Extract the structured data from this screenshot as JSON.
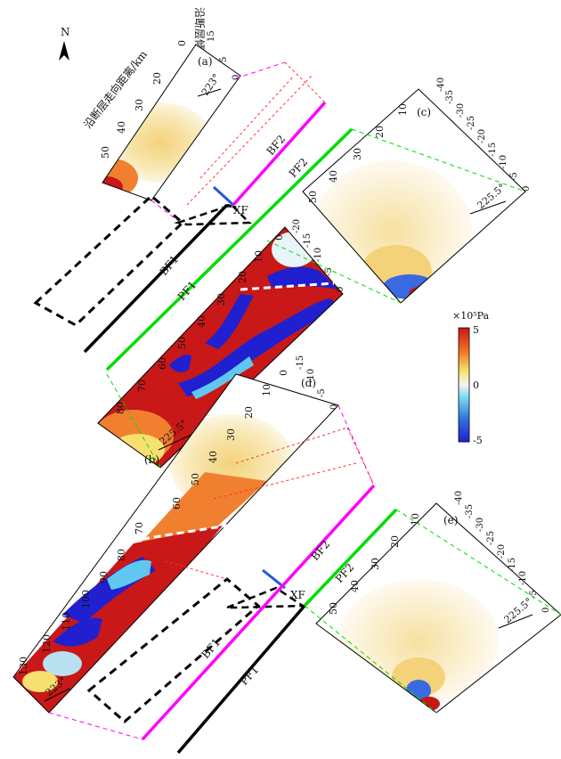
{
  "north": {
    "label": "N"
  },
  "colorbar": {
    "unit": "×10⁵Pa",
    "ticks": [
      "5",
      "0",
      "-5"
    ],
    "colors": [
      "#c81818",
      "#f0f0f0",
      "#2020d0"
    ]
  },
  "axis_titles": {
    "strike": "沿断层走向距离/km",
    "dip": "沿断层倾向距离/km"
  },
  "panels": {
    "a": {
      "label": "(a)",
      "angle": "223°",
      "strike_ticks": [
        "0",
        "10",
        "20",
        "30",
        "40",
        "50"
      ],
      "dip_ticks": [
        "0",
        "5",
        "10",
        "15"
      ]
    },
    "b": {
      "label": "(b)",
      "angle": "225.5°",
      "strike_ticks": [
        "0",
        "10",
        "20",
        "30",
        "40",
        "50",
        "60",
        "70",
        "80"
      ],
      "dip_ticks": [
        "0",
        "-5",
        "-10",
        "-15",
        "-20"
      ]
    },
    "c": {
      "label": "(c)",
      "angle": "225.5°",
      "strike_ticks": [
        "0",
        "10",
        "20",
        "30",
        "40",
        "50"
      ],
      "dip_ticks": [
        "0",
        "-5",
        "-10",
        "-15",
        "-20",
        "-25",
        "-30",
        "-35",
        "-40"
      ]
    },
    "d": {
      "label": "(d)",
      "angle": "223°",
      "strike_ticks": [
        "0",
        "10",
        "20",
        "30",
        "40",
        "50",
        "60",
        "70",
        "80",
        "90",
        "100",
        "110",
        "120",
        "130"
      ],
      "dip_ticks": [
        "0",
        "-5",
        "-10",
        "-15"
      ]
    },
    "e": {
      "label": "(e)",
      "angle": "225.5°",
      "strike_ticks": [
        "0",
        "10",
        "20",
        "30",
        "40",
        "50"
      ],
      "dip_ticks": [
        "0",
        "-5",
        "-10",
        "-15",
        "-20",
        "-25",
        "-30",
        "-35",
        "-40"
      ]
    }
  },
  "faults": {
    "top": {
      "bf2": "BF2",
      "pf2": "PF2",
      "xf": "XF",
      "bf1": "BF1",
      "pf1": "PF1"
    },
    "bottom": {
      "bf2": "BF2",
      "pf2": "PF2",
      "xf": "XF",
      "bf1": "BF1",
      "pf1": "PF1"
    }
  },
  "line_colors": {
    "bf": "#ff00ff",
    "pf": "#00dd00",
    "xf": "#2255dd",
    "outline": "#000000"
  }
}
